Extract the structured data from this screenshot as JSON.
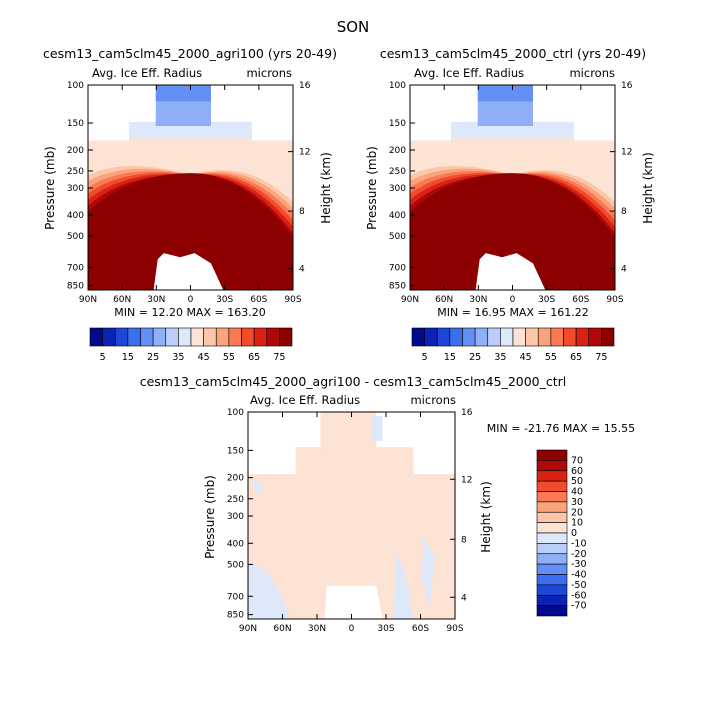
{
  "page_title": "SON",
  "chart_data": [
    {
      "type": "heatmap",
      "title": "cesm13_cam5clm45_2000_agri100 (yrs 20-49)",
      "subtitle_left": "Avg. Ice Eff. Radius",
      "subtitle_right": "microns",
      "ylabel": "Pressure (mb)",
      "y2label": "Height (km)",
      "x_ticks": [
        "90N",
        "60N",
        "30N",
        "0",
        "30S",
        "60S",
        "90S"
      ],
      "p_ticks": [
        "100",
        "150",
        "200",
        "250",
        "300",
        "400",
        "500",
        "700",
        "850"
      ],
      "h_ticks": [
        "16",
        "12",
        "8",
        "4"
      ],
      "stats": "MIN =  12.20   MAX = 163.20",
      "min": 12.2,
      "max": 163.2
    },
    {
      "type": "heatmap",
      "title": "cesm13_cam5clm45_2000_ctrl (yrs 20-49)",
      "subtitle_left": "Avg. Ice Eff. Radius",
      "subtitle_right": "microns",
      "ylabel": "Pressure (mb)",
      "y2label": "Height (km)",
      "x_ticks": [
        "90N",
        "60N",
        "30N",
        "0",
        "30S",
        "60S",
        "90S"
      ],
      "p_ticks": [
        "100",
        "150",
        "200",
        "250",
        "300",
        "400",
        "500",
        "700",
        "850"
      ],
      "h_ticks": [
        "16",
        "12",
        "8",
        "4"
      ],
      "stats": "MIN =  16.95   MAX = 161.22",
      "min": 16.95,
      "max": 161.22
    },
    {
      "type": "heatmap",
      "title": "cesm13_cam5clm45_2000_agri100 - cesm13_cam5clm45_2000_ctrl",
      "subtitle_left": "Avg. Ice Eff. Radius",
      "subtitle_right": "microns",
      "ylabel": "Pressure (mb)",
      "y2label": "Height (km)",
      "x_ticks": [
        "90N",
        "60N",
        "30N",
        "0",
        "30S",
        "60S",
        "90S"
      ],
      "p_ticks": [
        "100",
        "150",
        "200",
        "250",
        "300",
        "400",
        "500",
        "700",
        "850"
      ],
      "h_ticks": [
        "16",
        "12",
        "8",
        "4"
      ],
      "stats": "MIN = -21.76   MAX =  15.55",
      "min": -21.76,
      "max": 15.55
    }
  ],
  "colorbar_top": {
    "labels": [
      "5",
      "15",
      "25",
      "35",
      "45",
      "55",
      "65",
      "75"
    ],
    "colors": [
      "#000c8c",
      "#0a23b5",
      "#1e46d9",
      "#3c6ef0",
      "#648ff5",
      "#8fb0f7",
      "#b9cff9",
      "#dde9fb",
      "#fde3d4",
      "#fcc6a8",
      "#fba37c",
      "#f97a52",
      "#f04b2c",
      "#d92214",
      "#b00808",
      "#8c0000"
    ]
  },
  "colorbar_diff": {
    "labels": [
      "70",
      "60",
      "50",
      "40",
      "30",
      "20",
      "10",
      "0",
      "-10",
      "-20",
      "-30",
      "-40",
      "-50",
      "-60",
      "-70"
    ],
    "colors": [
      "#8c0000",
      "#b00808",
      "#d92214",
      "#f04b2c",
      "#f97a52",
      "#fba37c",
      "#fcc6a8",
      "#fde3d4",
      "#dde9fb",
      "#b9cff9",
      "#8fb0f7",
      "#648ff5",
      "#3c6ef0",
      "#1e46d9",
      "#0a23b5",
      "#000c8c"
    ]
  }
}
